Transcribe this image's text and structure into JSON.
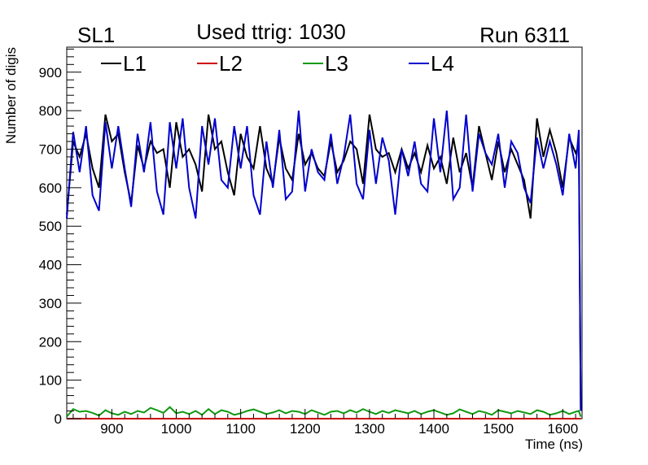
{
  "chart_data": {
    "type": "line",
    "title_left": "SL1",
    "title_center": "Used ttrig: 1030",
    "title_right": "Run 6311",
    "xlabel": "Time (ns)",
    "ylabel": "Number of digis",
    "xlim": [
      830,
      1630
    ],
    "ylim": [
      0,
      965
    ],
    "xticks": [
      900,
      1000,
      1100,
      1200,
      1300,
      1400,
      1500,
      1600
    ],
    "yticks": [
      0,
      100,
      200,
      300,
      400,
      500,
      600,
      700,
      800,
      900
    ],
    "grid": false,
    "legend_position": "top",
    "x": [
      830,
      840,
      850,
      860,
      870,
      880,
      890,
      900,
      910,
      920,
      930,
      940,
      950,
      960,
      970,
      980,
      990,
      1000,
      1010,
      1020,
      1030,
      1040,
      1050,
      1060,
      1070,
      1080,
      1090,
      1100,
      1110,
      1120,
      1130,
      1140,
      1150,
      1160,
      1170,
      1180,
      1190,
      1200,
      1210,
      1220,
      1230,
      1240,
      1250,
      1260,
      1270,
      1280,
      1290,
      1300,
      1310,
      1320,
      1330,
      1340,
      1350,
      1360,
      1370,
      1380,
      1390,
      1400,
      1410,
      1420,
      1430,
      1440,
      1450,
      1460,
      1470,
      1480,
      1490,
      1500,
      1510,
      1520,
      1530,
      1540,
      1550,
      1560,
      1570,
      1580,
      1590,
      1600,
      1610,
      1620,
      1625,
      1628
    ],
    "series": [
      {
        "name": "L1",
        "color": "#000000",
        "values": [
          530,
          720,
          680,
          740,
          650,
          600,
          790,
          720,
          740,
          640,
          560,
          710,
          650,
          720,
          690,
          700,
          600,
          770,
          680,
          700,
          660,
          590,
          790,
          700,
          720,
          640,
          580,
          740,
          680,
          650,
          760,
          650,
          610,
          730,
          650,
          620,
          740,
          660,
          690,
          650,
          630,
          720,
          640,
          670,
          720,
          700,
          610,
          790,
          700,
          680,
          690,
          640,
          700,
          650,
          690,
          640,
          710,
          650,
          680,
          610,
          730,
          640,
          690,
          600,
          760,
          690,
          620,
          720,
          640,
          700,
          660,
          620,
          520,
          780,
          680,
          750,
          690,
          600,
          730,
          690,
          710,
          20
        ]
      },
      {
        "name": "L2",
        "color": "#cc0000",
        "values": [
          0,
          0,
          0,
          0,
          0,
          0,
          0,
          0,
          0,
          0,
          0,
          0,
          0,
          0,
          0,
          0,
          0,
          0,
          0,
          0,
          0,
          0,
          0,
          0,
          0,
          0,
          0,
          0,
          0,
          0,
          0,
          0,
          0,
          0,
          0,
          0,
          0,
          0,
          0,
          0,
          0,
          0,
          0,
          0,
          0,
          0,
          0,
          0,
          0,
          0,
          0,
          0,
          0,
          0,
          0,
          0,
          0,
          0,
          0,
          0,
          0,
          0,
          0,
          0,
          0,
          0,
          0,
          0,
          0,
          0,
          0,
          0,
          0,
          0,
          0,
          0,
          0,
          0,
          0,
          0,
          0,
          0
        ]
      },
      {
        "name": "L3",
        "color": "#119911",
        "values": [
          5,
          25,
          18,
          20,
          15,
          8,
          22,
          14,
          10,
          18,
          12,
          20,
          16,
          28,
          22,
          15,
          30,
          14,
          18,
          12,
          20,
          10,
          25,
          12,
          22,
          18,
          10,
          14,
          20,
          24,
          18,
          12,
          16,
          22,
          14,
          20,
          18,
          12,
          22,
          16,
          10,
          18,
          20,
          14,
          22,
          16,
          25,
          18,
          12,
          20,
          15,
          22,
          18,
          14,
          20,
          12,
          18,
          22,
          16,
          10,
          14,
          24,
          18,
          12,
          20,
          16,
          10,
          22,
          18,
          14,
          20,
          16,
          12,
          22,
          18,
          10,
          14,
          20,
          12,
          18,
          20,
          5
        ]
      },
      {
        "name": "L4",
        "color": "#0000cc",
        "values": [
          520,
          745,
          640,
          760,
          580,
          540,
          770,
          650,
          760,
          650,
          550,
          740,
          640,
          770,
          590,
          530,
          770,
          650,
          780,
          600,
          520,
          760,
          660,
          780,
          620,
          600,
          760,
          650,
          760,
          580,
          530,
          720,
          600,
          750,
          570,
          590,
          800,
          590,
          700,
          640,
          620,
          740,
          610,
          680,
          790,
          610,
          570,
          750,
          610,
          730,
          670,
          530,
          700,
          630,
          720,
          610,
          590,
          780,
          640,
          800,
          570,
          600,
          790,
          590,
          740,
          690,
          660,
          740,
          600,
          720,
          690,
          600,
          560,
          730,
          650,
          720,
          660,
          580,
          740,
          650,
          750,
          20
        ]
      }
    ]
  }
}
